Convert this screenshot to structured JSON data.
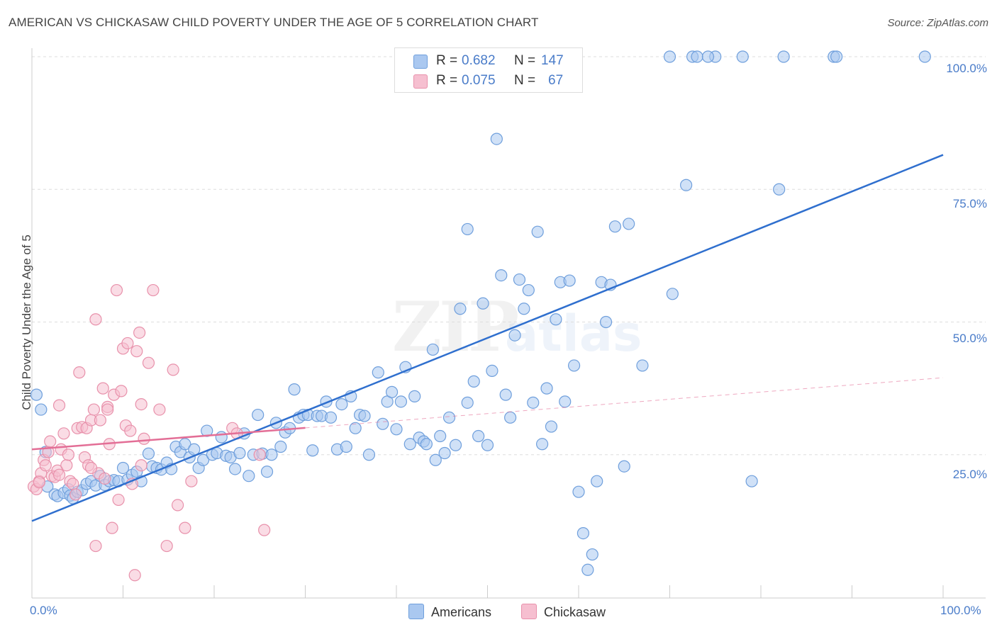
{
  "title": "AMERICAN VS CHICKASAW CHILD POVERTY UNDER THE AGE OF 5 CORRELATION CHART",
  "source": "Source: ZipAtlas.com",
  "watermark_main": "ZIP",
  "watermark_sub": "atlas",
  "stats": {
    "americans": {
      "r_label": "R =",
      "r_value": "0.682",
      "n_label": "N =",
      "n_value": "147"
    },
    "chickasaw": {
      "r_label": "R =",
      "r_value": "0.075",
      "n_label": "N =",
      "n_value": "67"
    }
  },
  "legend": {
    "americans": "Americans",
    "chickasaw": "Chickasaw"
  },
  "colors": {
    "americans_fill": "#aac8f0",
    "americans_stroke": "#6f9fdc",
    "americans_line": "#2f6fce",
    "chickasaw_fill": "#f6bfd0",
    "chickasaw_stroke": "#e891ab",
    "chickasaw_line": "#e36e96",
    "tick_text": "#4a7cc9",
    "grid": "#dddddd"
  },
  "chart_data": {
    "type": "scatter",
    "xlabel": "",
    "ylabel": "Child Poverty Under the Age of 5",
    "xlim": [
      0,
      100
    ],
    "ylim": [
      0,
      100
    ],
    "x_ticks": [
      "0.0%",
      "100.0%"
    ],
    "y_ticks": [
      "25.0%",
      "50.0%",
      "75.0%",
      "100.0%"
    ],
    "y_tick_values": [
      25,
      50,
      75,
      100
    ],
    "grid": true,
    "legend_position": "bottom",
    "series": [
      {
        "name": "Americans",
        "trend": {
          "x0": 0,
          "y0": 12.5,
          "x1": 100,
          "y1": 81.5,
          "x_end_solid": 100
        },
        "points": [
          [
            0.5,
            36.3
          ],
          [
            1,
            33.5
          ],
          [
            1.5,
            25.5
          ],
          [
            1.7,
            19
          ],
          [
            2.5,
            17.5
          ],
          [
            2.8,
            17.2
          ],
          [
            3.5,
            17.8
          ],
          [
            4,
            18.5
          ],
          [
            4.2,
            17.3
          ],
          [
            4.5,
            16.8
          ],
          [
            5,
            18
          ],
          [
            5.5,
            18.3
          ],
          [
            6,
            19.5
          ],
          [
            6.5,
            20
          ],
          [
            7,
            19.2
          ],
          [
            7.5,
            21
          ],
          [
            8,
            19.3
          ],
          [
            8.5,
            20
          ],
          [
            9,
            20.2
          ],
          [
            9.5,
            20
          ],
          [
            10,
            22.5
          ],
          [
            10.5,
            20.3
          ],
          [
            11,
            21.2
          ],
          [
            11.5,
            21.8
          ],
          [
            12,
            20
          ],
          [
            12.8,
            25.2
          ],
          [
            13.2,
            22.8
          ],
          [
            13.7,
            22.5
          ],
          [
            14.2,
            22.2
          ],
          [
            14.8,
            23.5
          ],
          [
            15.3,
            22.3
          ],
          [
            15.8,
            26.5
          ],
          [
            16.3,
            25.5
          ],
          [
            16.8,
            27
          ],
          [
            17.3,
            24.5
          ],
          [
            17.8,
            26
          ],
          [
            18.3,
            22.5
          ],
          [
            18.8,
            24
          ],
          [
            19.2,
            29.5
          ],
          [
            19.8,
            25
          ],
          [
            20.3,
            25.3
          ],
          [
            20.8,
            28.3
          ],
          [
            21.3,
            24.8
          ],
          [
            21.8,
            24.5
          ],
          [
            22.3,
            22.3
          ],
          [
            22.8,
            25.3
          ],
          [
            23.3,
            29
          ],
          [
            23.8,
            21
          ],
          [
            24.3,
            25
          ],
          [
            24.8,
            32.5
          ],
          [
            25.3,
            25.2
          ],
          [
            25.8,
            21.8
          ],
          [
            26.3,
            25
          ],
          [
            26.8,
            31
          ],
          [
            27.3,
            26.5
          ],
          [
            27.8,
            29.2
          ],
          [
            28.3,
            30
          ],
          [
            28.8,
            37.3
          ],
          [
            29.3,
            32
          ],
          [
            29.8,
            32.5
          ],
          [
            30.3,
            32.5
          ],
          [
            30.8,
            25.8
          ],
          [
            31.3,
            32.3
          ],
          [
            31.8,
            32.3
          ],
          [
            32.3,
            35
          ],
          [
            32.8,
            32
          ],
          [
            33.5,
            26
          ],
          [
            34,
            34.5
          ],
          [
            34.5,
            26.5
          ],
          [
            35,
            36
          ],
          [
            35.5,
            30
          ],
          [
            36,
            32.5
          ],
          [
            36.5,
            32.3
          ],
          [
            37,
            25
          ],
          [
            38,
            40.5
          ],
          [
            38.5,
            30.8
          ],
          [
            39,
            35
          ],
          [
            39.5,
            36.8
          ],
          [
            40,
            29.8
          ],
          [
            40.5,
            35
          ],
          [
            41,
            41.5
          ],
          [
            41.5,
            27
          ],
          [
            42,
            36
          ],
          [
            42.5,
            28.2
          ],
          [
            43,
            27.5
          ],
          [
            43.3,
            27
          ],
          [
            44,
            44.8
          ],
          [
            44.3,
            24
          ],
          [
            44.8,
            28.5
          ],
          [
            45.3,
            25.3
          ],
          [
            45.8,
            32
          ],
          [
            46.5,
            26.8
          ],
          [
            47,
            52.5
          ],
          [
            47.8,
            34.8
          ],
          [
            48.5,
            38.8
          ],
          [
            49,
            28.5
          ],
          [
            49.5,
            53.5
          ],
          [
            50,
            26.8
          ],
          [
            50.5,
            40.8
          ],
          [
            51,
            84.5
          ],
          [
            51.5,
            58.8
          ],
          [
            52,
            36.3
          ],
          [
            52.5,
            32
          ],
          [
            53,
            47.5
          ],
          [
            53.5,
            58
          ],
          [
            54,
            52.5
          ],
          [
            54.5,
            56
          ],
          [
            55,
            34.8
          ],
          [
            55.5,
            67
          ],
          [
            56,
            27
          ],
          [
            56.5,
            37.5
          ],
          [
            57,
            30.3
          ],
          [
            57.5,
            50.5
          ],
          [
            58,
            57.5
          ],
          [
            58.5,
            35
          ],
          [
            59,
            57.8
          ],
          [
            59.5,
            41.8
          ],
          [
            60,
            18
          ],
          [
            60.5,
            10.2
          ],
          [
            61,
            3.3
          ],
          [
            61.5,
            6.2
          ],
          [
            62,
            20
          ],
          [
            62.5,
            57.5
          ],
          [
            63,
            50
          ],
          [
            63.5,
            57
          ],
          [
            64,
            68
          ],
          [
            65,
            22.8
          ],
          [
            65.5,
            68.5
          ],
          [
            67,
            41.8
          ],
          [
            70.3,
            55.3
          ],
          [
            71.8,
            75.8
          ],
          [
            79,
            20
          ],
          [
            88,
            100
          ],
          [
            98,
            100
          ],
          [
            70,
            100
          ],
          [
            72.5,
            100
          ],
          [
            73,
            100
          ],
          [
            75,
            100
          ],
          [
            78,
            100
          ],
          [
            82.5,
            100
          ],
          [
            88.3,
            100
          ],
          [
            74.2,
            100
          ],
          [
            58,
            100
          ],
          [
            54.3,
            100
          ],
          [
            53,
            100
          ],
          [
            50.5,
            100
          ],
          [
            47,
            96
          ],
          [
            54.4,
            97
          ],
          [
            46.8,
            95
          ],
          [
            82,
            75
          ],
          [
            47.8,
            67.5
          ]
        ]
      },
      {
        "name": "Chickasaw",
        "trend": {
          "x0": 0,
          "y0": 26,
          "x1": 100,
          "y1": 39.5,
          "x_end_solid": 30
        },
        "points": [
          [
            0.2,
            19
          ],
          [
            0.5,
            18.5
          ],
          [
            0.8,
            20
          ],
          [
            1,
            21.5
          ],
          [
            1.3,
            24
          ],
          [
            1.5,
            23
          ],
          [
            1.8,
            25.5
          ],
          [
            2,
            27.5
          ],
          [
            2.2,
            21
          ],
          [
            2.5,
            20.8
          ],
          [
            2.8,
            22
          ],
          [
            3,
            34.3
          ],
          [
            3.2,
            26
          ],
          [
            3.5,
            29
          ],
          [
            3.8,
            23
          ],
          [
            4,
            25
          ],
          [
            4.2,
            20
          ],
          [
            4.5,
            19.5
          ],
          [
            4.8,
            17.5
          ],
          [
            5,
            30
          ],
          [
            5.2,
            40.5
          ],
          [
            5.5,
            30.2
          ],
          [
            5.8,
            24.5
          ],
          [
            6,
            30
          ],
          [
            6.2,
            23
          ],
          [
            6.5,
            31.5
          ],
          [
            6.8,
            33.5
          ],
          [
            7,
            7.8
          ],
          [
            7.3,
            21.5
          ],
          [
            7.5,
            31.5
          ],
          [
            7.8,
            37.5
          ],
          [
            8,
            20.5
          ],
          [
            8.3,
            34
          ],
          [
            8.5,
            27
          ],
          [
            8.8,
            11.2
          ],
          [
            9,
            36.3
          ],
          [
            9.3,
            56
          ],
          [
            9.5,
            16.5
          ],
          [
            9.8,
            37
          ],
          [
            10,
            45
          ],
          [
            10.3,
            30.5
          ],
          [
            10.5,
            46
          ],
          [
            10.8,
            29.5
          ],
          [
            11,
            19.5
          ],
          [
            11.3,
            2.3
          ],
          [
            11.5,
            44.5
          ],
          [
            11.8,
            48
          ],
          [
            12,
            34.5
          ],
          [
            12.3,
            28
          ],
          [
            12.8,
            42.3
          ],
          [
            13.3,
            56
          ],
          [
            14,
            33.5
          ],
          [
            14.8,
            7.8
          ],
          [
            15.5,
            41
          ],
          [
            16,
            15.5
          ],
          [
            16.8,
            11.2
          ],
          [
            17.5,
            20
          ],
          [
            22,
            30
          ],
          [
            22.5,
            29
          ],
          [
            25,
            25
          ],
          [
            25.5,
            10.8
          ],
          [
            7,
            50.5
          ],
          [
            8.3,
            33.5
          ],
          [
            3,
            21.2
          ],
          [
            6.5,
            22.5
          ],
          [
            12,
            23
          ],
          [
            0.8,
            19.8
          ]
        ]
      }
    ]
  }
}
